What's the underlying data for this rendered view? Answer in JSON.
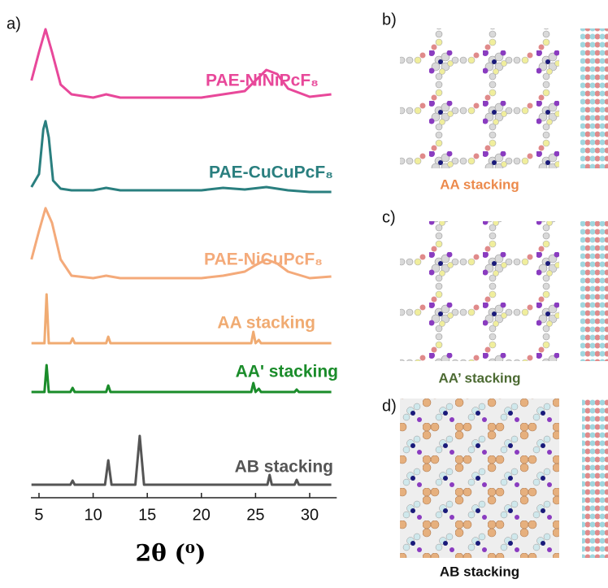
{
  "panel_labels": [
    "a)",
    "b)",
    "c)",
    "d)"
  ],
  "structures": [
    {
      "caption": "AA stacking",
      "color": "#ec8a4c"
    },
    {
      "caption": "AA’ stacking",
      "color": "#4c6a32"
    },
    {
      "caption": "AB stacking",
      "color": "#111111"
    }
  ],
  "chart_data": {
    "type": "line",
    "xlabel": "2θ (⁰)",
    "xlim": [
      4.25,
      32.5
    ],
    "xticks": [
      5,
      10,
      15,
      20,
      25,
      30
    ],
    "ylim": [
      0,
      600
    ],
    "series": [
      {
        "name": "PAE-NiNiPcF₈",
        "color": "#e8489a",
        "x": [
          4.3,
          5.0,
          5.6,
          6.2,
          7.0,
          8.0,
          10,
          11.2,
          12.5,
          15,
          18,
          20,
          22,
          24,
          25,
          26,
          27,
          28,
          30,
          32
        ],
        "values": [
          513,
          548,
          576,
          548,
          508,
          496,
          492,
          496,
          492,
          492,
          492,
          492,
          496,
          500,
          513,
          526,
          521,
          503,
          493,
          496
        ]
      },
      {
        "name": "PAE-CuCuPcF₈",
        "color": "#2a7f7f",
        "x": [
          4.3,
          5.0,
          5.4,
          5.6,
          5.9,
          6.3,
          7.0,
          8,
          10,
          11.2,
          12.5,
          15,
          18,
          20,
          22,
          24,
          26,
          28,
          30,
          32
        ],
        "values": [
          382,
          398,
          453,
          463,
          443,
          390,
          380,
          378,
          378,
          381,
          378,
          378,
          378,
          378,
          381,
          379,
          382,
          378,
          376,
          376
        ]
      },
      {
        "name": "PAE-NiCuPcF₈",
        "color": "#f4aa7a",
        "x": [
          4.3,
          5.0,
          5.6,
          6.2,
          7.0,
          8.0,
          10,
          11.2,
          12.5,
          15,
          18,
          20,
          22,
          24,
          25,
          26,
          27,
          28,
          30,
          32
        ],
        "values": [
          293,
          328,
          356,
          338,
          293,
          273,
          270,
          273,
          270,
          270,
          270,
          270,
          273,
          278,
          286,
          293,
          288,
          278,
          270,
          272
        ]
      },
      {
        "name": "AA stacking",
        "color": "#f0ab72",
        "x": [
          4.3,
          5.5,
          5.7,
          5.9,
          7.9,
          8.1,
          8.3,
          11.2,
          11.4,
          11.6,
          24.6,
          24.8,
          25.0,
          25.3,
          25.5,
          32
        ],
        "values": [
          190,
          190,
          250,
          190,
          190,
          196,
          190,
          190,
          198,
          190,
          190,
          204,
          190,
          194,
          190,
          190
        ]
      },
      {
        "name": "AA' stacking",
        "color": "#1a8c2a",
        "x": [
          4.3,
          5.5,
          5.7,
          5.9,
          7.9,
          8.1,
          8.3,
          11.2,
          11.4,
          11.6,
          24.6,
          24.8,
          25.0,
          25.3,
          25.5,
          28.6,
          28.8,
          29.0,
          32
        ],
        "values": [
          130,
          130,
          163,
          130,
          130,
          135,
          130,
          130,
          138,
          130,
          130,
          141,
          130,
          134,
          130,
          130,
          133,
          130,
          130
        ]
      },
      {
        "name": "AB stacking",
        "color": "#555555",
        "x": [
          4.3,
          7.9,
          8.1,
          8.3,
          11.1,
          11.4,
          11.7,
          13.9,
          14.3,
          14.7,
          26.1,
          26.3,
          26.5,
          28.6,
          28.8,
          29.0,
          32
        ],
        "values": [
          16,
          16,
          21,
          16,
          16,
          46,
          16,
          16,
          76,
          16,
          16,
          28,
          16,
          16,
          22,
          16,
          16
        ]
      }
    ]
  }
}
